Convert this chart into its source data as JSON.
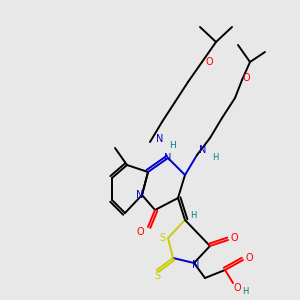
{
  "bg": "#e8e8e8",
  "C": "#000000",
  "N": "#0000cc",
  "O": "#ff0000",
  "S": "#cccc00",
  "H": "#008080",
  "lw": 1.4,
  "fs": 7.0
}
